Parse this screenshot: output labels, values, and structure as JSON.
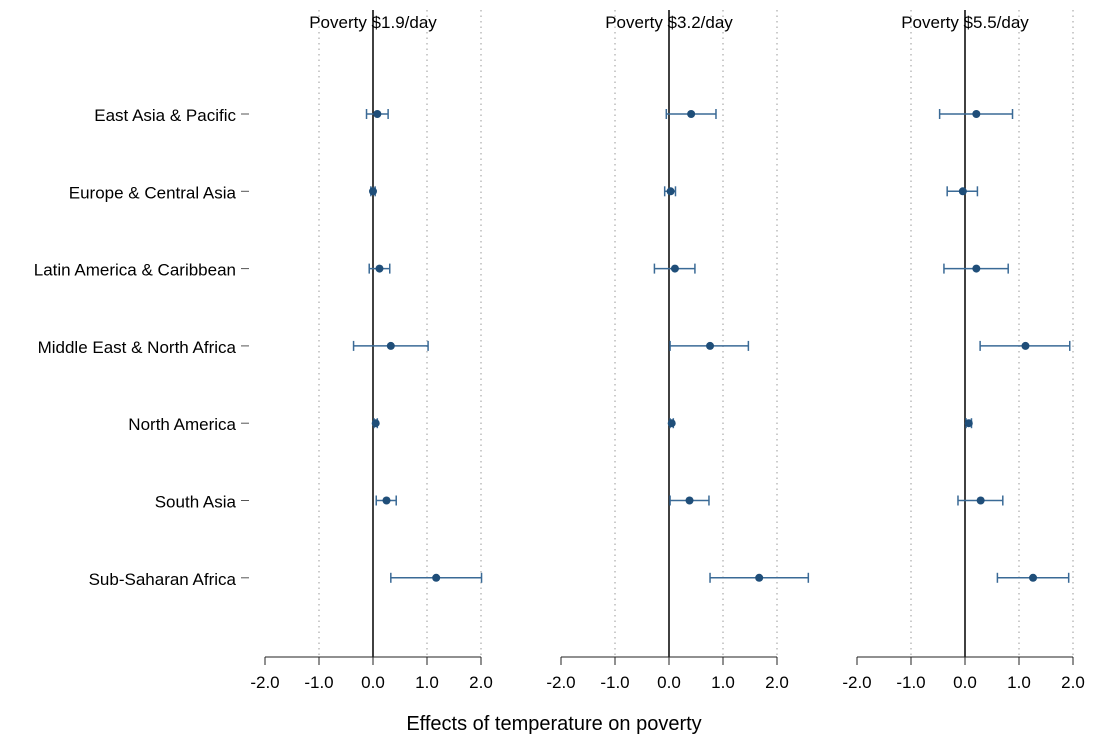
{
  "colors": {
    "marker": "#1f4e79",
    "ci": "#3a6a96",
    "grid": "#9a9a9a",
    "axis": "#222222"
  },
  "chart_data": {
    "type": "scatter",
    "subtype": "coefficient-plot",
    "xlabel": "Effects of temperature on poverty",
    "categories": [
      "East Asia & Pacific",
      "Europe & Central Asia",
      "Latin America & Caribbean",
      "Middle East & North Africa",
      "North America",
      "South Asia",
      "Sub-Saharan Africa"
    ],
    "x_range": [
      -2.0,
      2.0
    ],
    "x_ticks": [
      "-2.0",
      "-1.0",
      "0.0",
      "1.0",
      "2.0"
    ],
    "grid": "dotted vertical lines at -1.0, 1.0, 2.0; solid reference line at 0",
    "panels": [
      {
        "title": "Poverty $1.9/day",
        "estimates": [
          0.08,
          0.0,
          0.12,
          0.33,
          0.05,
          0.25,
          1.17
        ],
        "ci_low": [
          -0.12,
          -0.04,
          -0.07,
          -0.36,
          0.02,
          0.06,
          0.33
        ],
        "ci_high": [
          0.28,
          0.04,
          0.31,
          1.02,
          0.08,
          0.43,
          2.01
        ]
      },
      {
        "title": "Poverty $3.2/day",
        "estimates": [
          0.41,
          0.03,
          0.11,
          0.76,
          0.05,
          0.38,
          1.67
        ],
        "ci_low": [
          -0.05,
          -0.08,
          -0.27,
          0.02,
          0.02,
          0.02,
          0.76
        ],
        "ci_high": [
          0.87,
          0.12,
          0.48,
          1.47,
          0.08,
          0.74,
          2.58
        ]
      },
      {
        "title": "Poverty $5.5/day",
        "estimates": [
          0.21,
          -0.04,
          0.21,
          1.12,
          0.07,
          0.29,
          1.26
        ],
        "ci_low": [
          -0.47,
          -0.33,
          -0.39,
          0.28,
          0.02,
          -0.13,
          0.6
        ],
        "ci_high": [
          0.88,
          0.23,
          0.8,
          1.94,
          0.12,
          0.7,
          1.92
        ]
      }
    ]
  }
}
